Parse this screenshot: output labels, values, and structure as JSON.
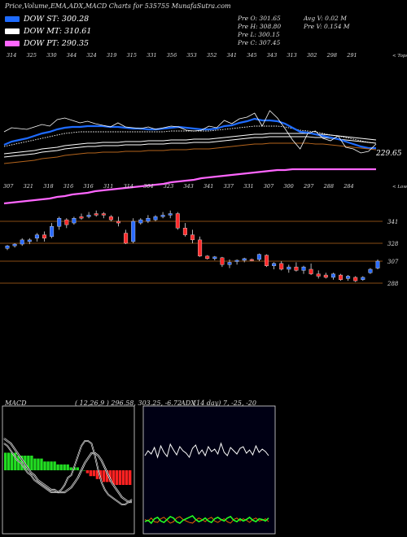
{
  "header": {
    "title": "Price,Volume,EMA,ADX,MACD Charts for 535755 MunafaSutra.com"
  },
  "legend": [
    {
      "label": "DOW ST: 300.28",
      "color": "#1e6bff"
    },
    {
      "label": "DOW MT: 310.61",
      "color": "#ffffff"
    },
    {
      "label": "DOW PT: 290.35",
      "color": "#ff66ff"
    }
  ],
  "stats": {
    "open": "Pre O: 301.65",
    "high": "Pre H: 308.80",
    "low": "Pre L: 300.15",
    "close": "Pre C: 307.45",
    "avg_volume": "Avg V: 0.02 M",
    "pre_volume": "Pre V: 0.154 M"
  },
  "chart_data": [
    {
      "type": "candlestick",
      "title": "",
      "price_levels": [
        "341",
        "328",
        "307",
        "288"
      ],
      "ema_last_label": "229.65",
      "corner_labels": {
        "top": "< Tops",
        "bottom": "< Lows"
      },
      "top_labels": [
        "314",
        "325",
        "330",
        "344",
        "324",
        "319",
        "315",
        "331",
        "356",
        "353",
        "352",
        "341",
        "345",
        "343",
        "313",
        "302",
        "298",
        "291"
      ],
      "bottom_labels": [
        "307",
        "321",
        "318",
        "316",
        "316",
        "311",
        "314",
        "304",
        "323",
        "343",
        "341",
        "337",
        "331",
        "307",
        "300",
        "297",
        "288",
        "284"
      ],
      "candles": [
        {
          "o": 322,
          "h": 326,
          "l": 320,
          "c": 325
        },
        {
          "o": 325,
          "h": 328,
          "l": 323,
          "c": 327
        },
        {
          "o": 327,
          "h": 331,
          "l": 325,
          "c": 330
        },
        {
          "o": 329,
          "h": 331,
          "l": 327,
          "c": 330
        },
        {
          "o": 331,
          "h": 334,
          "l": 329,
          "c": 333
        },
        {
          "o": 333,
          "h": 335,
          "l": 329,
          "c": 331
        },
        {
          "o": 332,
          "h": 340,
          "l": 331,
          "c": 338
        },
        {
          "o": 338,
          "h": 344,
          "l": 336,
          "c": 343
        },
        {
          "o": 342,
          "h": 343,
          "l": 337,
          "c": 339
        },
        {
          "o": 340,
          "h": 344,
          "l": 339,
          "c": 343
        },
        {
          "o": 344,
          "h": 346,
          "l": 342,
          "c": 343
        },
        {
          "o": 344,
          "h": 347,
          "l": 343,
          "c": 345
        },
        {
          "o": 346,
          "h": 348,
          "l": 344,
          "c": 345
        },
        {
          "o": 346,
          "h": 347,
          "l": 343,
          "c": 345
        },
        {
          "o": 344,
          "h": 345,
          "l": 341,
          "c": 342
        },
        {
          "o": 341,
          "h": 344,
          "l": 338,
          "c": 340
        },
        {
          "o": 334,
          "h": 336,
          "l": 327,
          "c": 328
        },
        {
          "o": 329,
          "h": 343,
          "l": 328,
          "c": 341
        },
        {
          "o": 340,
          "h": 343,
          "l": 339,
          "c": 342
        },
        {
          "o": 341,
          "h": 345,
          "l": 340,
          "c": 343
        },
        {
          "o": 342,
          "h": 345,
          "l": 341,
          "c": 344
        },
        {
          "o": 344,
          "h": 347,
          "l": 343,
          "c": 345
        },
        {
          "o": 345,
          "h": 348,
          "l": 343,
          "c": 346
        },
        {
          "o": 346,
          "h": 347,
          "l": 336,
          "c": 337
        },
        {
          "o": 337,
          "h": 340,
          "l": 332,
          "c": 333
        },
        {
          "o": 333,
          "h": 336,
          "l": 328,
          "c": 330
        },
        {
          "o": 330,
          "h": 332,
          "l": 312,
          "c": 313
        },
        {
          "o": 313,
          "h": 314,
          "l": 309,
          "c": 310
        },
        {
          "o": 310,
          "h": 313,
          "l": 308,
          "c": 312
        },
        {
          "o": 311,
          "h": 312,
          "l": 302,
          "c": 304
        },
        {
          "o": 304,
          "h": 309,
          "l": 301,
          "c": 306
        },
        {
          "o": 307,
          "h": 309,
          "l": 304,
          "c": 308
        },
        {
          "o": 308,
          "h": 311,
          "l": 306,
          "c": 310
        },
        {
          "o": 309,
          "h": 310,
          "l": 307,
          "c": 308
        },
        {
          "o": 309,
          "h": 316,
          "l": 307,
          "c": 315
        },
        {
          "o": 314,
          "h": 315,
          "l": 302,
          "c": 303
        },
        {
          "o": 303,
          "h": 306,
          "l": 300,
          "c": 305
        },
        {
          "o": 305,
          "h": 307,
          "l": 299,
          "c": 300
        },
        {
          "o": 300,
          "h": 304,
          "l": 297,
          "c": 302
        },
        {
          "o": 302,
          "h": 306,
          "l": 298,
          "c": 299
        },
        {
          "o": 299,
          "h": 303,
          "l": 296,
          "c": 302
        },
        {
          "o": 300,
          "h": 305,
          "l": 295,
          "c": 296
        },
        {
          "o": 296,
          "h": 299,
          "l": 292,
          "c": 294
        },
        {
          "o": 295,
          "h": 297,
          "l": 292,
          "c": 293
        },
        {
          "o": 293,
          "h": 297,
          "l": 291,
          "c": 296
        },
        {
          "o": 295,
          "h": 296,
          "l": 290,
          "c": 291
        },
        {
          "o": 292,
          "h": 295,
          "l": 290,
          "c": 294
        },
        {
          "o": 293,
          "h": 294,
          "l": 289,
          "c": 290
        },
        {
          "o": 291,
          "h": 294,
          "l": 290,
          "c": 293
        },
        {
          "o": 297,
          "h": 301,
          "l": 296,
          "c": 300
        },
        {
          "o": 301,
          "h": 309,
          "l": 300,
          "c": 307
        }
      ],
      "price_line": [
        378,
        383,
        382,
        381,
        384,
        387,
        385,
        393,
        395,
        392,
        389,
        391,
        388,
        386,
        384,
        389,
        384,
        383,
        382,
        384,
        381,
        383,
        385,
        384,
        380,
        379,
        380,
        385,
        383,
        392,
        388,
        394,
        396,
        401,
        385,
        404,
        395,
        382,
        368,
        357,
        376,
        379,
        370,
        367,
        373,
        359,
        357,
        352,
        354,
        363
      ],
      "ema_fast": [
        362,
        366,
        368,
        370,
        373,
        376,
        378,
        381,
        383,
        384,
        384,
        385,
        385,
        385,
        384,
        384,
        383,
        382,
        382,
        381,
        381,
        382,
        383,
        384,
        383,
        382,
        381,
        381,
        382,
        385,
        386,
        389,
        391,
        394,
        392,
        392,
        391,
        388,
        383,
        378,
        377,
        375,
        373,
        371,
        369,
        366,
        363,
        360,
        358,
        358
      ],
      "ema_slow": [
        360,
        362,
        364,
        366,
        368,
        370,
        372,
        374,
        376,
        377,
        378,
        378,
        378,
        378,
        378,
        378,
        378,
        378,
        378,
        378,
        378,
        378,
        379,
        379,
        379,
        379,
        379,
        379,
        380,
        381,
        382,
        383,
        384,
        385,
        385,
        385,
        385,
        384,
        382,
        380,
        379,
        378,
        376,
        374,
        373,
        371,
        369,
        367,
        365,
        364
      ],
      "ema_long": [
        351,
        352,
        353,
        354,
        355,
        357,
        358,
        359,
        361,
        362,
        363,
        364,
        364,
        365,
        365,
        365,
        366,
        366,
        366,
        367,
        367,
        367,
        368,
        368,
        368,
        369,
        369,
        369,
        370,
        371,
        372,
        373,
        374,
        375,
        375,
        376,
        376,
        376,
        376,
        376,
        376,
        375,
        375,
        374,
        373,
        372,
        371,
        370,
        369,
        368
      ],
      "ema_pt": [
        290,
        291,
        292,
        293,
        294,
        295,
        296,
        298,
        299,
        301,
        302,
        303,
        305,
        306,
        307,
        308,
        309,
        310,
        311,
        312,
        313,
        314,
        316,
        317,
        318,
        319,
        321,
        322,
        323,
        324,
        325,
        326,
        327,
        328,
        329,
        330,
        331,
        331,
        332,
        332,
        332,
        332,
        332,
        332,
        332,
        332,
        332,
        332,
        332,
        332
      ]
    },
    {
      "type": "macd",
      "title": "MACD",
      "params": "( 12,26,9 ) 296.58, 303.25, -6.72",
      "histogram": [
        6,
        6,
        6,
        6,
        5,
        5,
        5,
        5,
        5,
        4,
        4,
        4,
        3,
        3,
        3,
        3,
        2,
        2,
        2,
        2,
        1,
        1,
        1,
        0,
        0,
        -1,
        -2,
        -2,
        -3,
        -3,
        -4,
        -4,
        -4,
        -5,
        -5,
        -5,
        -5,
        -5,
        -5
      ],
      "macd": [
        11,
        10,
        8,
        6,
        4,
        3,
        1,
        -1,
        -2,
        -4,
        -5,
        -6,
        -7,
        -8,
        -9,
        -9,
        -9,
        -8,
        -6,
        -3,
        -2,
        2,
        6,
        10,
        12,
        12,
        11,
        6,
        0,
        -5,
        -8,
        -10,
        -11,
        -12,
        -13,
        -14,
        -14,
        -13,
        -12
      ],
      "signal": [
        13,
        12,
        11,
        9,
        7,
        5,
        3,
        1,
        -1,
        -2,
        -4,
        -5,
        -6,
        -7,
        -8,
        -8,
        -9,
        -9,
        -9,
        -8,
        -7,
        -5,
        -3,
        0,
        3,
        5,
        7,
        7,
        6,
        4,
        1,
        -2,
        -5,
        -7,
        -9,
        -11,
        -12,
        -13,
        -13
      ]
    },
    {
      "type": "adx",
      "title": "ADX",
      "params": "(14 day) 7, -25, -20",
      "adx": [
        60,
        66,
        62,
        70,
        58,
        72,
        64,
        59,
        74,
        67,
        61,
        71,
        66,
        63,
        58,
        69,
        73,
        62,
        67,
        60,
        71,
        65,
        68,
        62,
        75,
        64,
        60,
        70,
        66,
        62,
        69,
        71,
        63,
        67,
        61,
        72,
        64,
        68,
        65,
        60
      ],
      "plus_di": [
        12,
        14,
        10,
        16,
        18,
        13,
        11,
        15,
        19,
        17,
        12,
        10,
        14,
        16,
        18,
        20,
        15,
        12,
        14,
        17,
        13,
        11,
        16,
        18,
        15,
        13,
        17,
        19,
        14,
        12,
        16,
        13,
        15,
        18,
        14,
        12,
        16,
        15,
        13,
        17
      ],
      "minus_di": [
        15,
        13,
        17,
        12,
        11,
        16,
        18,
        14,
        10,
        12,
        17,
        19,
        15,
        13,
        11,
        10,
        14,
        17,
        15,
        12,
        16,
        18,
        13,
        11,
        14,
        16,
        12,
        10,
        15,
        17,
        13,
        16,
        14,
        11,
        15,
        17,
        13,
        14,
        16,
        12
      ]
    }
  ]
}
